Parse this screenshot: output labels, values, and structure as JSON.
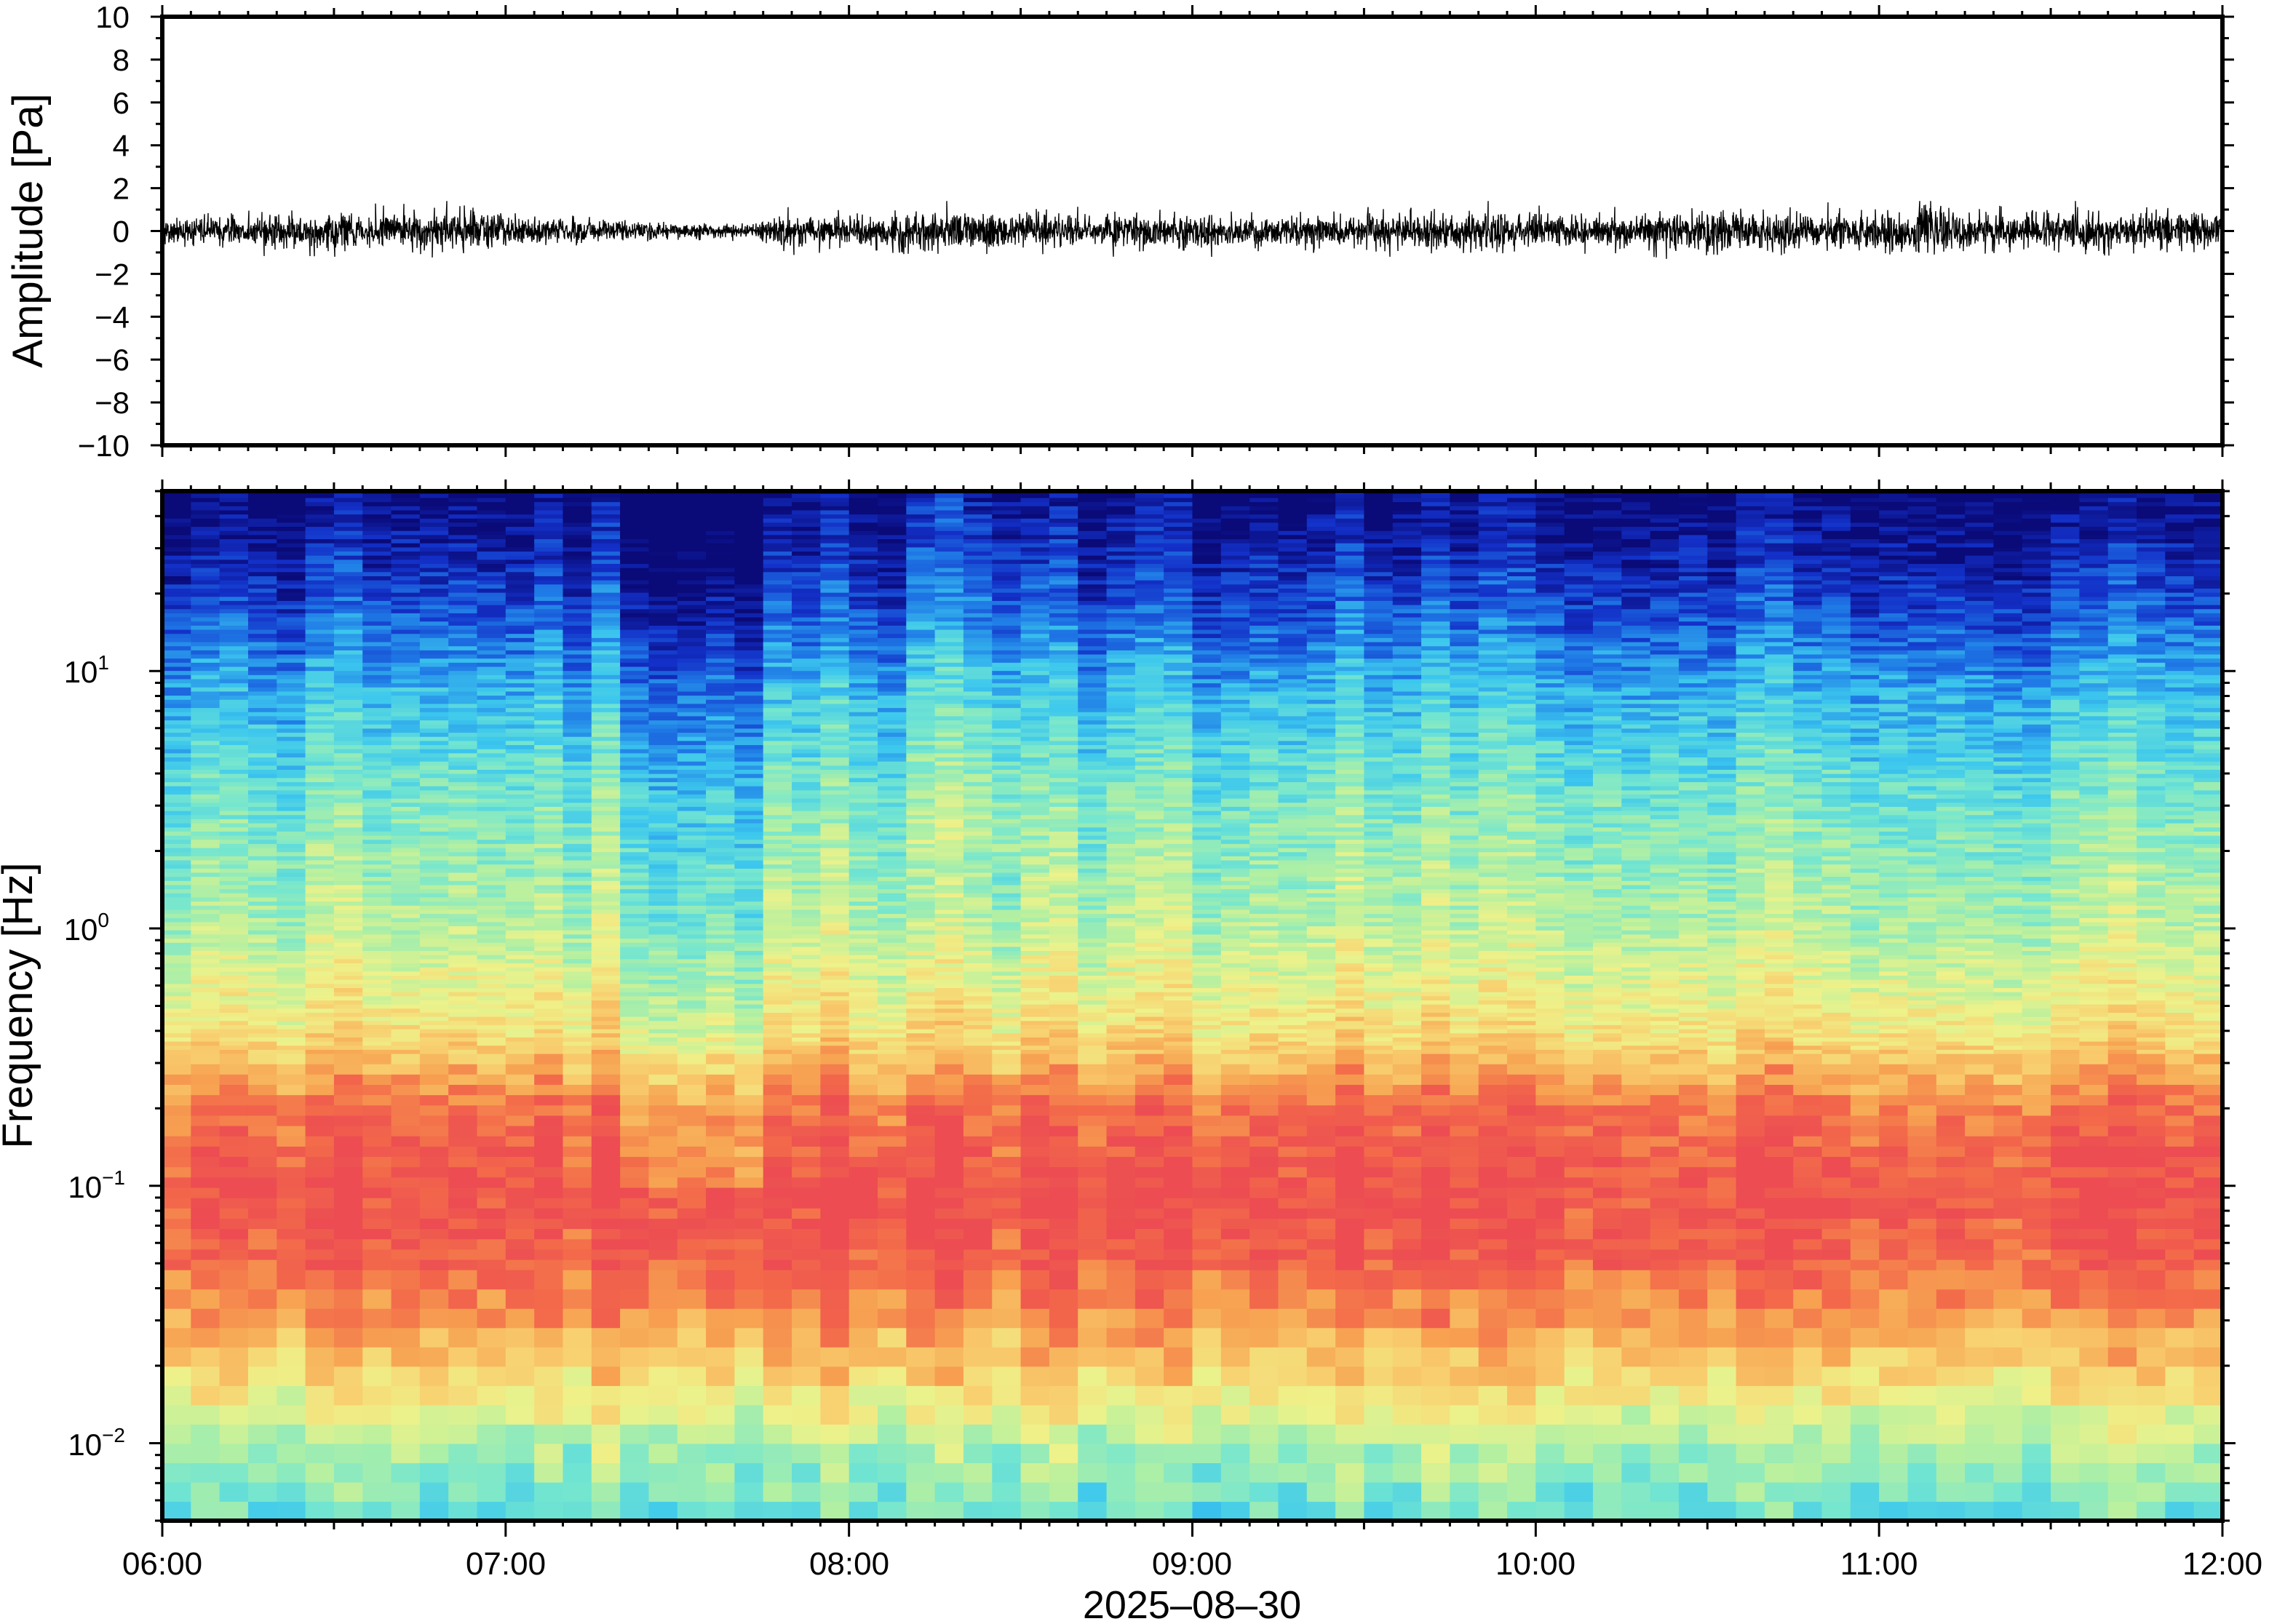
{
  "chart_data": [
    {
      "type": "line",
      "panel": "waveform",
      "ylabel": "Amplitude [Pa]",
      "ylim": [
        -10,
        10
      ],
      "y_ticks": [
        10,
        8,
        6,
        4,
        2,
        0,
        -2,
        -4,
        -6,
        -8,
        -10
      ],
      "y_tick_labels": [
        "10",
        "8",
        "6",
        "4",
        "2",
        "0",
        "−2",
        "−4",
        "−6",
        "−8",
        "−10"
      ],
      "x_range": [
        "06:00",
        "12:00"
      ],
      "baseline": 0,
      "typical_envelope": 0.6,
      "peak_amplitude": 1.4,
      "line_color": "#000000",
      "envelope_profile": {
        "time_h": [
          6.0,
          6.5,
          6.85,
          7.0,
          7.2,
          7.45,
          7.7,
          7.8,
          8.0,
          8.3,
          8.5,
          9.0,
          9.5,
          9.8,
          10.0,
          10.3,
          10.5,
          10.8,
          11.1,
          11.5,
          11.9,
          12.0
        ],
        "amplitude": [
          0.5,
          0.6,
          0.75,
          0.55,
          0.5,
          0.3,
          0.25,
          0.55,
          0.6,
          0.75,
          0.6,
          0.6,
          0.55,
          0.75,
          0.6,
          0.55,
          0.8,
          0.65,
          0.8,
          0.65,
          0.75,
          0.6
        ]
      }
    },
    {
      "type": "heatmap",
      "panel": "spectrogram",
      "ylabel": "Frequency [Hz]",
      "xlabel": "2025–08–30",
      "yscale": "log",
      "ylim": [
        0.005,
        50
      ],
      "y_tick_labels": [
        {
          "base": "10",
          "exp": "1",
          "value": 10
        },
        {
          "base": "10",
          "exp": "0",
          "value": 1
        },
        {
          "base": "10",
          "exp": "−1",
          "value": 0.1
        },
        {
          "base": "10",
          "exp": "−2",
          "value": 0.01
        }
      ],
      "x_tick_labels": [
        "06:00",
        "07:00",
        "08:00",
        "09:00",
        "10:00",
        "11:00",
        "12:00"
      ],
      "x_tick_hours": [
        6,
        7,
        8,
        9,
        10,
        11,
        12
      ],
      "colormap": [
        "#0a0a78",
        "#1330c8",
        "#1f7ae6",
        "#3cc7ee",
        "#74e6d0",
        "#b6f0a0",
        "#eef28a",
        "#f8d070",
        "#f7a552",
        "#f36a4a",
        "#ec4c52"
      ],
      "relative_level_by_log10_frequency": {
        "log10_f": [
          -2.3,
          -2.0,
          -1.7,
          -1.3,
          -1.0,
          -0.7,
          -0.4,
          0.0,
          0.5,
          0.9,
          1.2,
          1.5,
          1.7
        ],
        "level": [
          0.38,
          0.5,
          0.72,
          0.94,
          0.98,
          0.9,
          0.66,
          0.52,
          0.42,
          0.3,
          0.17,
          0.06,
          0.0
        ]
      },
      "quiet_interval": [
        "07:20",
        "07:45"
      ],
      "elevated_interval": [
        "08:10",
        "08:30"
      ]
    }
  ]
}
